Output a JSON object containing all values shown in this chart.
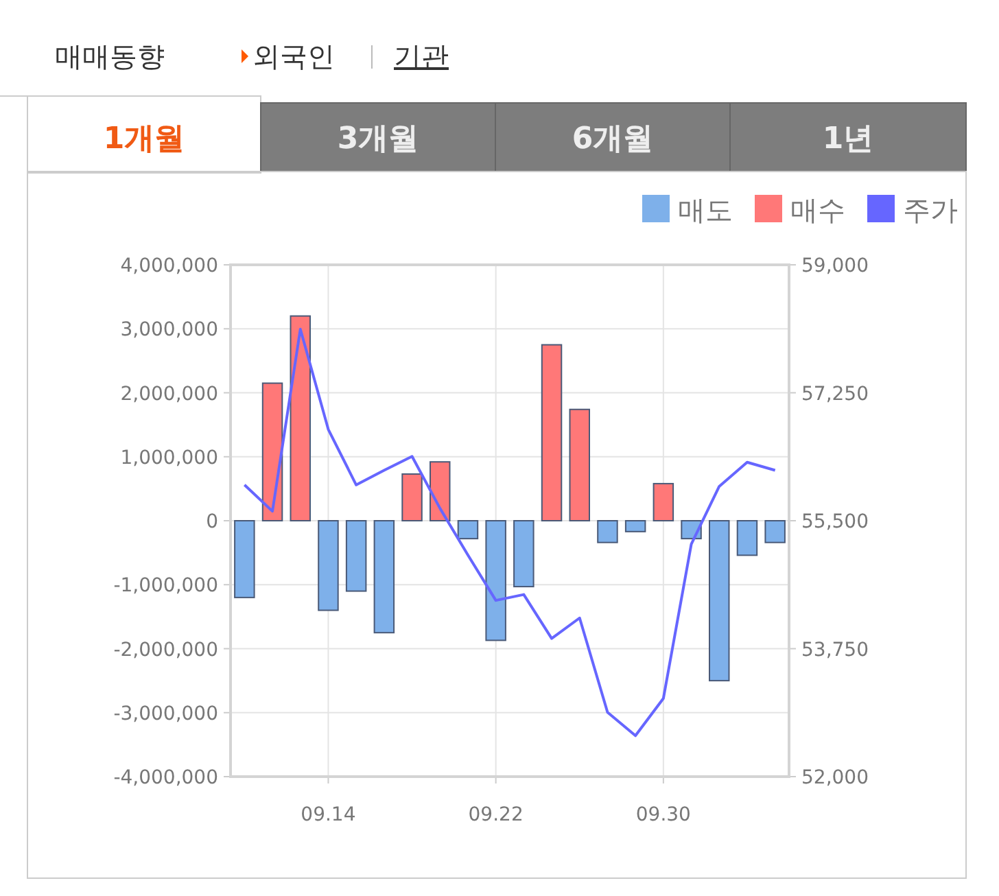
{
  "chart_data": {
    "type": "bar",
    "title": "매매동향",
    "annotations": [
      "외국인",
      "기관",
      "1개월",
      "3개월",
      "6개월",
      "1년"
    ],
    "categories": [
      null,
      null,
      null,
      "09.14",
      null,
      null,
      null,
      null,
      null,
      "09.22",
      null,
      null,
      null,
      null,
      null,
      "09.30",
      null,
      null,
      null,
      null
    ],
    "series": [
      {
        "name": "매도",
        "color": "#7eb0ea",
        "values": [
          -1200000,
          0,
          0,
          -1400000,
          -1100000,
          -1750000,
          0,
          0,
          -280000,
          -1870000,
          -1030000,
          0,
          0,
          -340000,
          -170000,
          0,
          -280000,
          -2500000,
          -540000,
          -340000
        ]
      },
      {
        "name": "매수",
        "color": "#ff7878",
        "values": [
          0,
          2150000,
          3200000,
          0,
          0,
          0,
          730000,
          920000,
          0,
          0,
          0,
          2750000,
          1740000,
          0,
          0,
          580000,
          0,
          0,
          0,
          0
        ]
      },
      {
        "name": "주가",
        "color": "#6666ff",
        "type": "line",
        "axis": "y2",
        "values": [
          55990,
          55630,
          58120,
          56750,
          55990,
          56190,
          56380,
          55670,
          55030,
          54410,
          54490,
          53890,
          54170,
          52880,
          52560,
          53070,
          55180,
          55970,
          56300,
          56190
        ]
      }
    ],
    "ylim": [
      -4000000,
      4000000
    ],
    "yticks": [
      {
        "value": -4000000,
        "label": "-4,000,000"
      },
      {
        "value": -3000000,
        "label": "-3,000,000"
      },
      {
        "value": -2000000,
        "label": "-2,000,000"
      },
      {
        "value": -1000000,
        "label": "-1,000,000"
      },
      0,
      {
        "value": 1000000,
        "label": "1,000,000"
      },
      {
        "value": 2000000,
        "label": "2,000,000"
      },
      {
        "value": 3000000,
        "label": "3,000,000"
      },
      {
        "value": 4000000,
        "label": "4,000,000"
      }
    ],
    "y2lim": [
      52000,
      59000
    ],
    "y2ticks": [
      {
        "value": 52000,
        "label": "52,000"
      },
      {
        "value": 53750,
        "label": "53,750"
      },
      {
        "value": 55500,
        "label": "55,500"
      },
      {
        "value": 57250,
        "label": "57,250"
      },
      {
        "value": 59000,
        "label": "59,000"
      }
    ],
    "grid": true,
    "legend": "top right"
  }
}
